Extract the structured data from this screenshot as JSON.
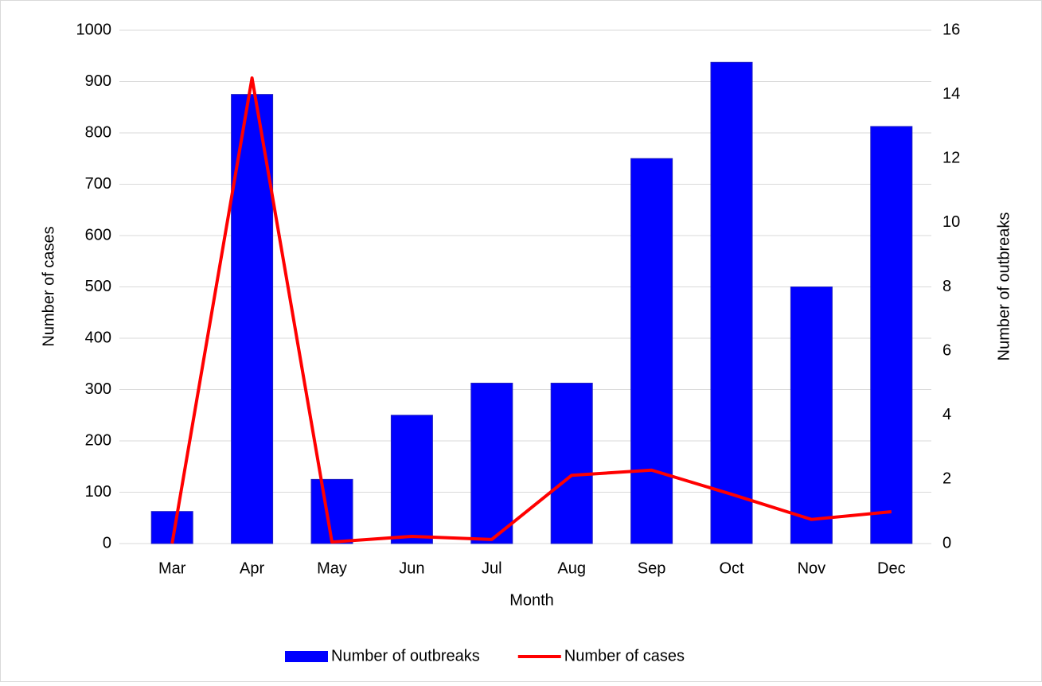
{
  "chart_data": {
    "type": "bar_line",
    "x_label": "Month",
    "y_label": "Number of cases",
    "y2_label": "Number of outbreaks",
    "categories": [
      "Mar",
      "Apr",
      "May",
      "Jun",
      "Jul",
      "Aug",
      "Sep",
      "Oct",
      "Nov",
      "Dec"
    ],
    "series": [
      {
        "name": "Number of outbreaks",
        "type": "bar",
        "axis": "y2",
        "color": "#0000ff",
        "values": [
          1,
          14,
          2,
          4,
          5,
          5,
          12,
          15,
          8,
          13
        ]
      },
      {
        "name": "Number of cases",
        "type": "line",
        "color": "#ff0000",
        "values": [
          0,
          907,
          3,
          14,
          8,
          133,
          143,
          96,
          47,
          62
        ]
      }
    ],
    "ylim": [
      0,
      1000
    ],
    "yticks": [
      0,
      100,
      200,
      300,
      400,
      500,
      600,
      700,
      800,
      900,
      1000
    ],
    "y2lim": [
      0,
      16
    ],
    "y2ticks": [
      0,
      2,
      4,
      6,
      8,
      10,
      12,
      14,
      16
    ],
    "grid": true,
    "legend": "bottom"
  }
}
